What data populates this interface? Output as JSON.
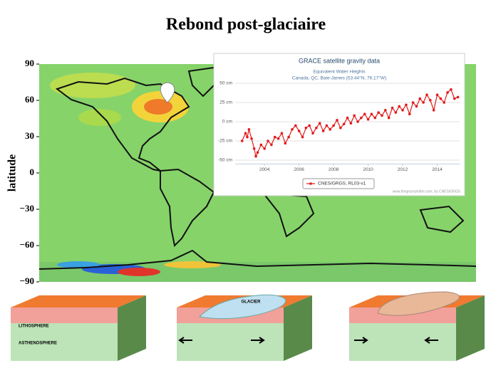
{
  "title": "Rebond post-glaciaire",
  "map": {
    "y_label": "latitude",
    "ylim": [
      -90,
      90
    ],
    "yticks": [
      90,
      60,
      30,
      0,
      {
        "value": -30,
        "label": "−30"
      },
      {
        "value": -60,
        "label": "−60"
      },
      {
        "value": -90,
        "label": "−90"
      }
    ]
  },
  "chart_data": {
    "type": "line",
    "title": "GRACE satellite gravity data",
    "subtitle": "Equivalent Water Heights",
    "location": "Canada, QC, Baie-James (53.44°N, 76.17°W)",
    "x": [
      2002.7,
      2002.9,
      2003.0,
      2003.1,
      2003.25,
      2003.4,
      2003.5,
      2003.6,
      2003.8,
      2004.0,
      2004.2,
      2004.4,
      2004.6,
      2004.8,
      2005.0,
      2005.2,
      2005.4,
      2005.6,
      2005.8,
      2006.0,
      2006.2,
      2006.4,
      2006.6,
      2006.8,
      2007.0,
      2007.2,
      2007.4,
      2007.6,
      2007.8,
      2008.0,
      2008.2,
      2008.4,
      2008.6,
      2008.8,
      2009.0,
      2009.2,
      2009.4,
      2009.6,
      2009.8,
      2010.0,
      2010.2,
      2010.4,
      2010.6,
      2010.8,
      2011.0,
      2011.2,
      2011.4,
      2011.6,
      2011.8,
      2012.0,
      2012.2,
      2012.4,
      2012.6,
      2012.8,
      2013.0,
      2013.2,
      2013.4,
      2013.6,
      2013.8,
      2014.0,
      2014.2,
      2014.4,
      2014.6,
      2014.8,
      2015.0,
      2015.2
    ],
    "series": [
      {
        "name": "CNES/GRGS, RL03-v1",
        "color": "#e31a1c",
        "values": [
          -25,
          -15,
          -20,
          -10,
          -22,
          -35,
          -45,
          -40,
          -30,
          -35,
          -25,
          -30,
          -20,
          -22,
          -15,
          -28,
          -20,
          -10,
          -5,
          -12,
          -20,
          -8,
          -5,
          -15,
          -8,
          -2,
          -12,
          -5,
          -10,
          -5,
          2,
          -8,
          -3,
          5,
          -2,
          8,
          0,
          5,
          10,
          3,
          10,
          5,
          12,
          8,
          15,
          5,
          18,
          12,
          20,
          15,
          22,
          10,
          25,
          20,
          30,
          25,
          35,
          28,
          15,
          35,
          30,
          25,
          38,
          42,
          30,
          32
        ]
      }
    ],
    "xlim": [
      2002.3,
      2015.3
    ],
    "ylim": [
      -55,
      55
    ],
    "xticks": [
      2004,
      2006,
      2008,
      2010,
      2012,
      2014
    ],
    "yticks": [
      {
        "value": 50,
        "label": "50 cm"
      },
      {
        "value": 25,
        "label": "25 cm"
      },
      {
        "value": 0,
        "label": "0 cm"
      },
      {
        "value": -25,
        "label": "-25 cm"
      },
      {
        "value": -50,
        "label": "-50 cm"
      }
    ],
    "grid": true,
    "credit": "www.thegraceplotter.com, by CNES/GRGS"
  },
  "diagram": {
    "lithosphere": "LITHOSPHERE",
    "asthenosphere": "ASTHENOSPHERE",
    "glacier": "GLACIER"
  }
}
